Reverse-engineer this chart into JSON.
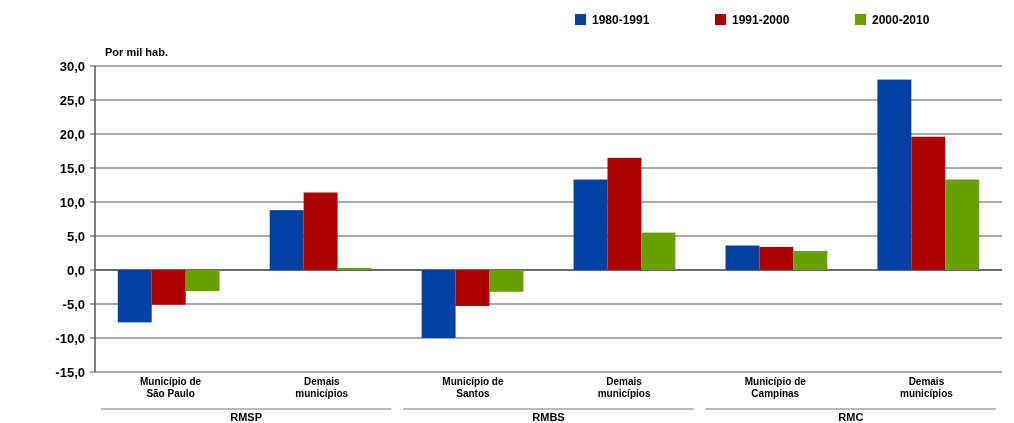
{
  "chart_data": {
    "type": "bar",
    "ylabel": "Por mil hab.",
    "categories": [
      "Município de\nSão Paulo",
      "Demais\nmunicípios",
      "Município de\nSantos",
      "Demais\nmunicípios",
      "Município de\nCampinas",
      "Demais\nmunicípios"
    ],
    "series": [
      {
        "name": "1980-1991",
        "color": "#0041a3",
        "values": [
          -7.7,
          8.8,
          -10.0,
          13.3,
          3.6,
          28.0
        ]
      },
      {
        "name": "1991-2000",
        "color": "#ad0000",
        "values": [
          -5.1,
          11.4,
          -5.3,
          16.5,
          3.4,
          19.6
        ]
      },
      {
        "name": "2000-2010",
        "color": "#6a9f00",
        "values": [
          -3.1,
          0.3,
          -3.2,
          5.5,
          2.8,
          13.3
        ]
      }
    ],
    "annotations": [
      "RMSP",
      "RMBS",
      "RMC"
    ],
    "ylim": [
      -15,
      30
    ],
    "yticks": [
      {
        "value": -15,
        "label": "-15,0"
      },
      {
        "value": -10,
        "label": "-10,0"
      },
      {
        "value": -5,
        "label": "-5,0"
      },
      {
        "value": 0,
        "label": "0,0"
      },
      {
        "value": 5,
        "label": "5,0"
      },
      {
        "value": 10,
        "label": "10,0"
      },
      {
        "value": 15,
        "label": "15,0"
      },
      {
        "value": 20,
        "label": "20,0"
      },
      {
        "value": 25,
        "label": "25,0"
      },
      {
        "value": 30,
        "label": "30,0"
      }
    ],
    "grid": "y",
    "legend": "top right"
  }
}
